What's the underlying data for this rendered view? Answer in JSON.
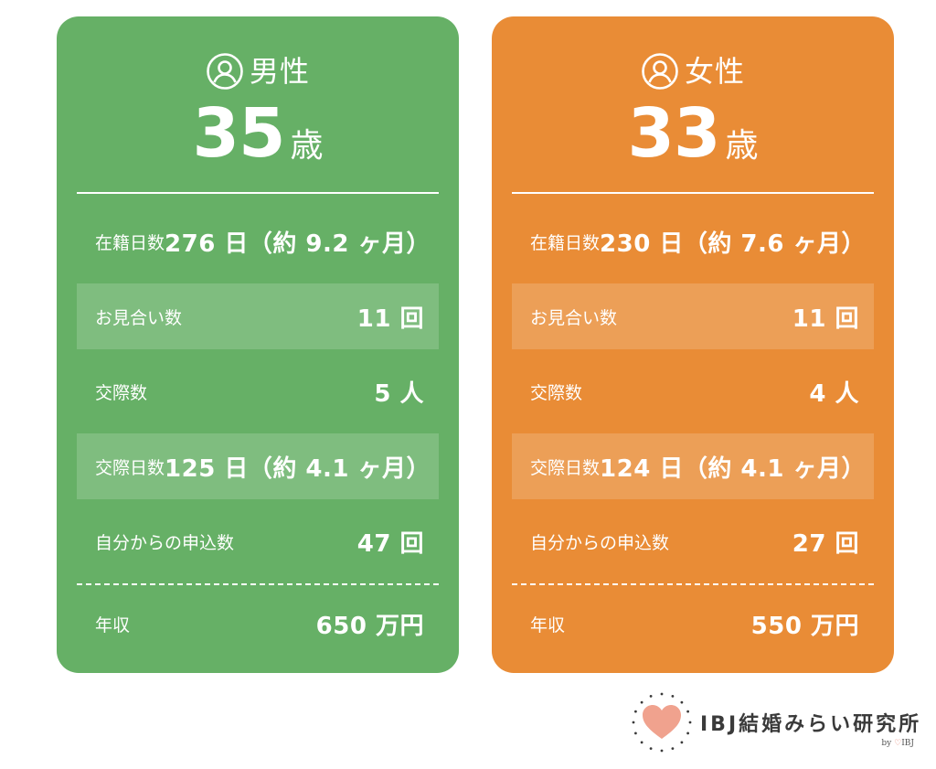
{
  "colors": {
    "male_card": "#66b066",
    "female_card": "#e98c36",
    "text": "#ffffff",
    "logo_heart": "#f0a28e"
  },
  "male": {
    "gender": "男性",
    "age": "35",
    "age_unit": "歳",
    "rows": [
      {
        "label": "在籍日数",
        "value": "276 日（約 9.2 ヶ月）"
      },
      {
        "label": "お見合い数",
        "value": "11 回"
      },
      {
        "label": "交際数",
        "value": "5 人"
      },
      {
        "label": "交際日数",
        "value": "125 日（約 4.1 ヶ月）"
      },
      {
        "label": "自分からの申込数",
        "value": "47 回"
      }
    ],
    "income": {
      "label": "年収",
      "value": "650 万円"
    }
  },
  "female": {
    "gender": "女性",
    "age": "33",
    "age_unit": "歳",
    "rows": [
      {
        "label": "在籍日数",
        "value": "230 日（約 7.6 ヶ月）"
      },
      {
        "label": "お見合い数",
        "value": "11 回"
      },
      {
        "label": "交際数",
        "value": "4 人"
      },
      {
        "label": "交際日数",
        "value": "124 日（約 4.1 ヶ月）"
      },
      {
        "label": "自分からの申込数",
        "value": "27 回"
      }
    ],
    "income": {
      "label": "年収",
      "value": "550 万円"
    }
  },
  "logo": {
    "name": "IBJ結婚みらい研究所",
    "sub_prefix": "by ",
    "sub_heart": "♡",
    "sub_brand": "IBJ",
    "icon": "heart-icon"
  }
}
